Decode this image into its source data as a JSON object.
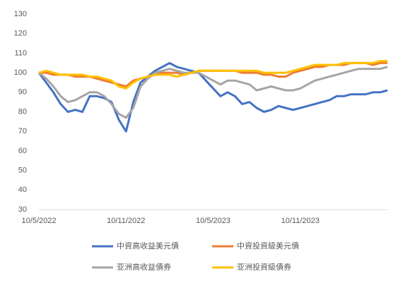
{
  "chart_data": {
    "type": "line",
    "categories": [
      "10/5/2022",
      null,
      null,
      null,
      null,
      null,
      null,
      null,
      null,
      null,
      null,
      null,
      "10/11/2022",
      null,
      null,
      null,
      null,
      null,
      null,
      null,
      null,
      null,
      null,
      null,
      "10/5/2023",
      null,
      null,
      null,
      null,
      null,
      null,
      null,
      null,
      null,
      null,
      null,
      "10/11/2023",
      null,
      null,
      null,
      null,
      null,
      null,
      null,
      null,
      null,
      null,
      null,
      null
    ],
    "series": [
      {
        "name": "中資高收益美元債",
        "color": "#4472c4",
        "values": [
          100,
          95,
          90,
          84,
          80,
          81,
          80,
          88,
          88,
          87,
          85,
          76,
          70,
          85,
          95,
          98,
          101,
          103,
          105,
          103,
          102,
          101,
          100,
          96,
          92,
          88,
          90,
          88,
          84,
          85,
          82,
          80,
          81,
          83,
          82,
          81,
          82,
          83,
          84,
          85,
          86,
          88,
          88,
          89,
          89,
          89,
          90,
          90,
          91
        ]
      },
      {
        "name": "中資投資級美元債",
        "color": "#ed7d31",
        "values": [
          100,
          100,
          99,
          99,
          99,
          98,
          98,
          98,
          97,
          96,
          95,
          94,
          93,
          96,
          97,
          98,
          99,
          100,
          100,
          100,
          99,
          100,
          101,
          101,
          101,
          101,
          101,
          101,
          100,
          100,
          100,
          99,
          99,
          98,
          98,
          100,
          101,
          102,
          103,
          103,
          104,
          104,
          104,
          105,
          105,
          105,
          104,
          105,
          105
        ]
      },
      {
        "name": "亚洲高收益債券",
        "color": "#a5a5a5",
        "values": [
          100,
          97,
          93,
          88,
          85,
          86,
          88,
          90,
          90,
          88,
          84,
          79,
          77,
          82,
          93,
          97,
          100,
          101,
          102,
          101,
          100,
          100,
          100,
          98,
          96,
          94,
          96,
          96,
          95,
          94,
          91,
          92,
          93,
          92,
          91,
          91,
          92,
          94,
          96,
          97,
          98,
          99,
          100,
          101,
          102,
          102,
          102,
          102,
          103
        ]
      },
      {
        "name": "亚洲投資級債券",
        "color": "#ffc000",
        "values": [
          100,
          101,
          100,
          99,
          99,
          99,
          99,
          98,
          98,
          97,
          96,
          93,
          92,
          95,
          97,
          98,
          99,
          99,
          99,
          98,
          99,
          100,
          101,
          101,
          101,
          101,
          101,
          101,
          101,
          101,
          101,
          100,
          100,
          100,
          100,
          101,
          102,
          103,
          104,
          104,
          104,
          104,
          105,
          105,
          105,
          105,
          105,
          106,
          106
        ]
      }
    ],
    "ylim": [
      30,
      130
    ],
    "yticks": [
      30,
      40,
      50,
      60,
      70,
      80,
      90,
      100,
      110,
      120,
      130
    ]
  }
}
